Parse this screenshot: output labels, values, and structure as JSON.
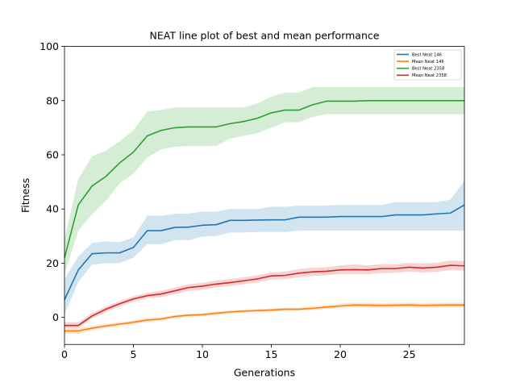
{
  "chart_data": {
    "type": "line",
    "title": "NEAT line plot of best and mean performance",
    "xlabel": "Generations",
    "ylabel": "Fitness",
    "xlim": [
      0,
      29
    ],
    "ylim": [
      -10,
      100
    ],
    "xticks": [
      0,
      5,
      10,
      15,
      20,
      25
    ],
    "yticks": [
      0,
      20,
      40,
      60,
      80,
      100
    ],
    "grid": false,
    "legend_position": "top-right",
    "x": [
      0,
      1,
      2,
      3,
      4,
      5,
      6,
      7,
      8,
      9,
      10,
      11,
      12,
      13,
      14,
      15,
      16,
      17,
      18,
      19,
      20,
      21,
      22,
      23,
      24,
      25,
      26,
      27,
      28,
      29
    ],
    "series": [
      {
        "name": "Best Neat 146",
        "color": "#1f77b4",
        "values": [
          6.5,
          17.5,
          23.5,
          23.8,
          23.8,
          25.8,
          32,
          32,
          33.2,
          33.3,
          34,
          34.2,
          35.8,
          35.8,
          35.9,
          36,
          36,
          37,
          37,
          37,
          37.2,
          37.2,
          37.2,
          37.2,
          37.8,
          37.8,
          37.8,
          38.2,
          38.5,
          41.5
        ],
        "lower": [
          1,
          13,
          19.5,
          20,
          20,
          22,
          27,
          27,
          28.5,
          28.5,
          29.8,
          30,
          31.3,
          31.3,
          31.5,
          31.5,
          31.5,
          32,
          32,
          32,
          32,
          32,
          32,
          32,
          32,
          32,
          32,
          32,
          32,
          32
        ],
        "upper": [
          14,
          22.5,
          27.5,
          28,
          27.8,
          29.5,
          37.5,
          37.5,
          38.2,
          38.3,
          39,
          39,
          40,
          40,
          40,
          40.8,
          40.8,
          41.3,
          41.3,
          41.3,
          41.5,
          41.5,
          41.5,
          41.5,
          42.5,
          42.5,
          42.5,
          42.5,
          43.5,
          50.5
        ]
      },
      {
        "name": "Mean Neat 146",
        "color": "#ff7f0e",
        "values": [
          -5,
          -5,
          -4,
          -3.2,
          -2.5,
          -1.8,
          -1,
          -0.6,
          0.3,
          0.8,
          1,
          1.5,
          2,
          2.3,
          2.5,
          2.7,
          3,
          3,
          3.3,
          3.8,
          4.2,
          4.6,
          4.5,
          4.4,
          4.5,
          4.6,
          4.4,
          4.5,
          4.6,
          4.6
        ],
        "lower": [
          -6,
          -6,
          -4.8,
          -4,
          -3.2,
          -2.5,
          -1.7,
          -1.2,
          -0.3,
          0.2,
          0.4,
          0.9,
          1.4,
          1.7,
          1.9,
          2.1,
          2.4,
          2.4,
          2.6,
          3.1,
          3.4,
          3.7,
          3.6,
          3.5,
          3.6,
          3.7,
          3.5,
          3.6,
          3.7,
          3.7
        ],
        "upper": [
          -4,
          -4,
          -3.2,
          -2.4,
          -1.8,
          -1.1,
          -0.3,
          0,
          0.9,
          1.4,
          1.6,
          2.1,
          2.6,
          2.9,
          3.1,
          3.3,
          3.6,
          3.6,
          4,
          4.5,
          5,
          5.5,
          5.4,
          5.3,
          5.4,
          5.5,
          5.3,
          5.4,
          5.5,
          5.5
        ]
      },
      {
        "name": "Best Neat 2358",
        "color": "#2ca02c",
        "values": [
          22,
          41.5,
          48.5,
          52,
          57,
          61,
          67,
          69,
          70,
          70.3,
          70.3,
          70.3,
          71.5,
          72.3,
          73.5,
          75.5,
          76.5,
          76.5,
          78.5,
          79.8,
          79.8,
          79.8,
          80,
          80,
          80,
          80,
          80,
          80,
          80,
          80
        ],
        "lower": [
          16,
          32,
          38,
          43,
          49.5,
          53,
          59,
          62,
          63,
          63.2,
          63.2,
          63.2,
          66,
          67,
          68,
          70,
          72,
          72,
          74,
          75,
          75,
          75,
          75,
          75,
          75,
          75,
          75,
          75,
          75,
          75
        ],
        "upper": [
          29,
          51,
          59.5,
          61.5,
          65,
          69,
          76,
          76.5,
          77.5,
          77.5,
          77.5,
          77.5,
          77.5,
          77.5,
          79,
          81.5,
          83,
          83,
          85,
          85,
          85,
          85,
          85,
          85,
          85,
          85,
          85,
          85,
          85,
          85
        ]
      },
      {
        "name": "Mean Neat 2358",
        "color": "#d62728",
        "values": [
          -3,
          -3,
          0.5,
          3,
          5,
          6.8,
          8,
          8.6,
          9.8,
          11,
          11.5,
          12.3,
          12.8,
          13.5,
          14.2,
          15.3,
          15.5,
          16.3,
          16.8,
          17,
          17.5,
          17.6,
          17.5,
          18,
          18,
          18.5,
          18.2,
          18.5,
          19.2,
          19
        ],
        "lower": [
          -4,
          -4,
          -0.5,
          2,
          4,
          5.8,
          7,
          7.4,
          8.6,
          9.8,
          10.2,
          11,
          11.5,
          12.2,
          12.9,
          14,
          14.1,
          14.8,
          15.3,
          15.5,
          16,
          16,
          15.9,
          16.4,
          16.4,
          16.9,
          16.5,
          16.8,
          17.4,
          17.2
        ],
        "upper": [
          -1.8,
          -1.8,
          1.5,
          4,
          6,
          7.8,
          9,
          9.8,
          11,
          12.2,
          12.8,
          13.6,
          14.1,
          14.8,
          15.5,
          16.6,
          16.9,
          17.8,
          18.3,
          18.5,
          19.2,
          19.5,
          19.2,
          19.6,
          19.6,
          20.1,
          19.9,
          20.2,
          21,
          20.8
        ]
      }
    ]
  }
}
